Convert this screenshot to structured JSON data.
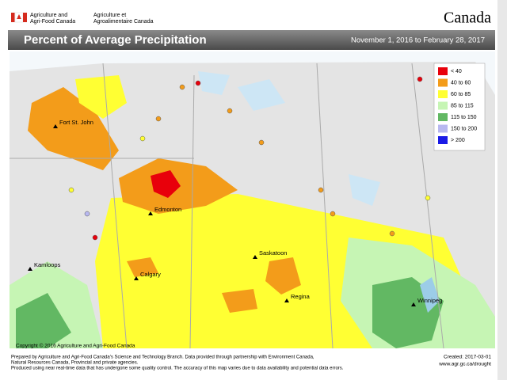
{
  "header": {
    "agency_en": [
      "Agriculture and",
      "Agri-Food Canada"
    ],
    "agency_fr": [
      "Agriculture et",
      "Agroalimentaire Canada"
    ],
    "wordmark": "Canada"
  },
  "title": "Percent of Average Precipitation",
  "period": "November 1, 2016 to February 28, 2017",
  "legend": [
    {
      "label": "< 40",
      "color": "#e8000b"
    },
    {
      "label": "40 to 60",
      "color": "#f39c1a"
    },
    {
      "label": "60 to 85",
      "color": "#ffff33"
    },
    {
      "label": "85 to 115",
      "color": "#c6f5b4"
    },
    {
      "label": "115 to 150",
      "color": "#62b863"
    },
    {
      "label": "150 to 200",
      "color": "#b8b8f0"
    },
    {
      "label": "> 200",
      "color": "#1a1ae6"
    }
  ],
  "cities": [
    "Fort St. John",
    "Edmonton",
    "Kamloops",
    "Calgary",
    "Saskatoon",
    "Regina",
    "Winnipeg"
  ],
  "footer": {
    "copyright": "Copyright © 2016 Agriculture and Agri-Food Canada",
    "notes": [
      "Prepared by Agriculture and Agri-Food Canada's Science and Technology Branch. Data provided through partnership with Environment Canada,",
      "Natural Resources Canada, Provincial and private agencies.",
      "Produced using near real-time data that has undergone some quality control. The accuracy of this map varies due to data availability and potential data errors."
    ],
    "created": "Created: 2017-03-01",
    "url": "www.agr.gc.ca/drought"
  }
}
